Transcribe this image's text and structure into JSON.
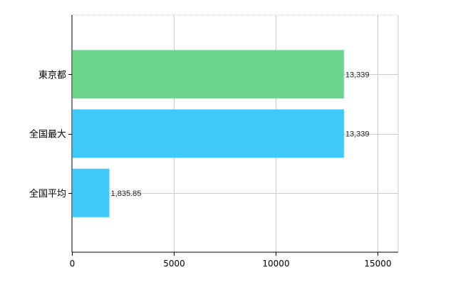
{
  "chart_data": {
    "type": "bar",
    "orientation": "horizontal",
    "categories": [
      "東京都",
      "全国最大",
      "全国平均"
    ],
    "values": [
      13339,
      13339,
      1835.85
    ],
    "value_labels": [
      "13,339",
      "13,339",
      "1,835.85"
    ],
    "bar_colors": [
      "#6dd58c",
      "#3ec9fa",
      "#3ec9fa"
    ],
    "xlim": [
      0,
      16000
    ],
    "xticks": [
      0,
      5000,
      10000,
      15000
    ],
    "xtick_labels": [
      "0",
      "5000",
      "10000",
      "15000"
    ],
    "grid": true,
    "gridline_color": "#cccccc",
    "axis_color": "#000000",
    "title": "",
    "xlabel": "",
    "ylabel": "",
    "legend": "none"
  }
}
